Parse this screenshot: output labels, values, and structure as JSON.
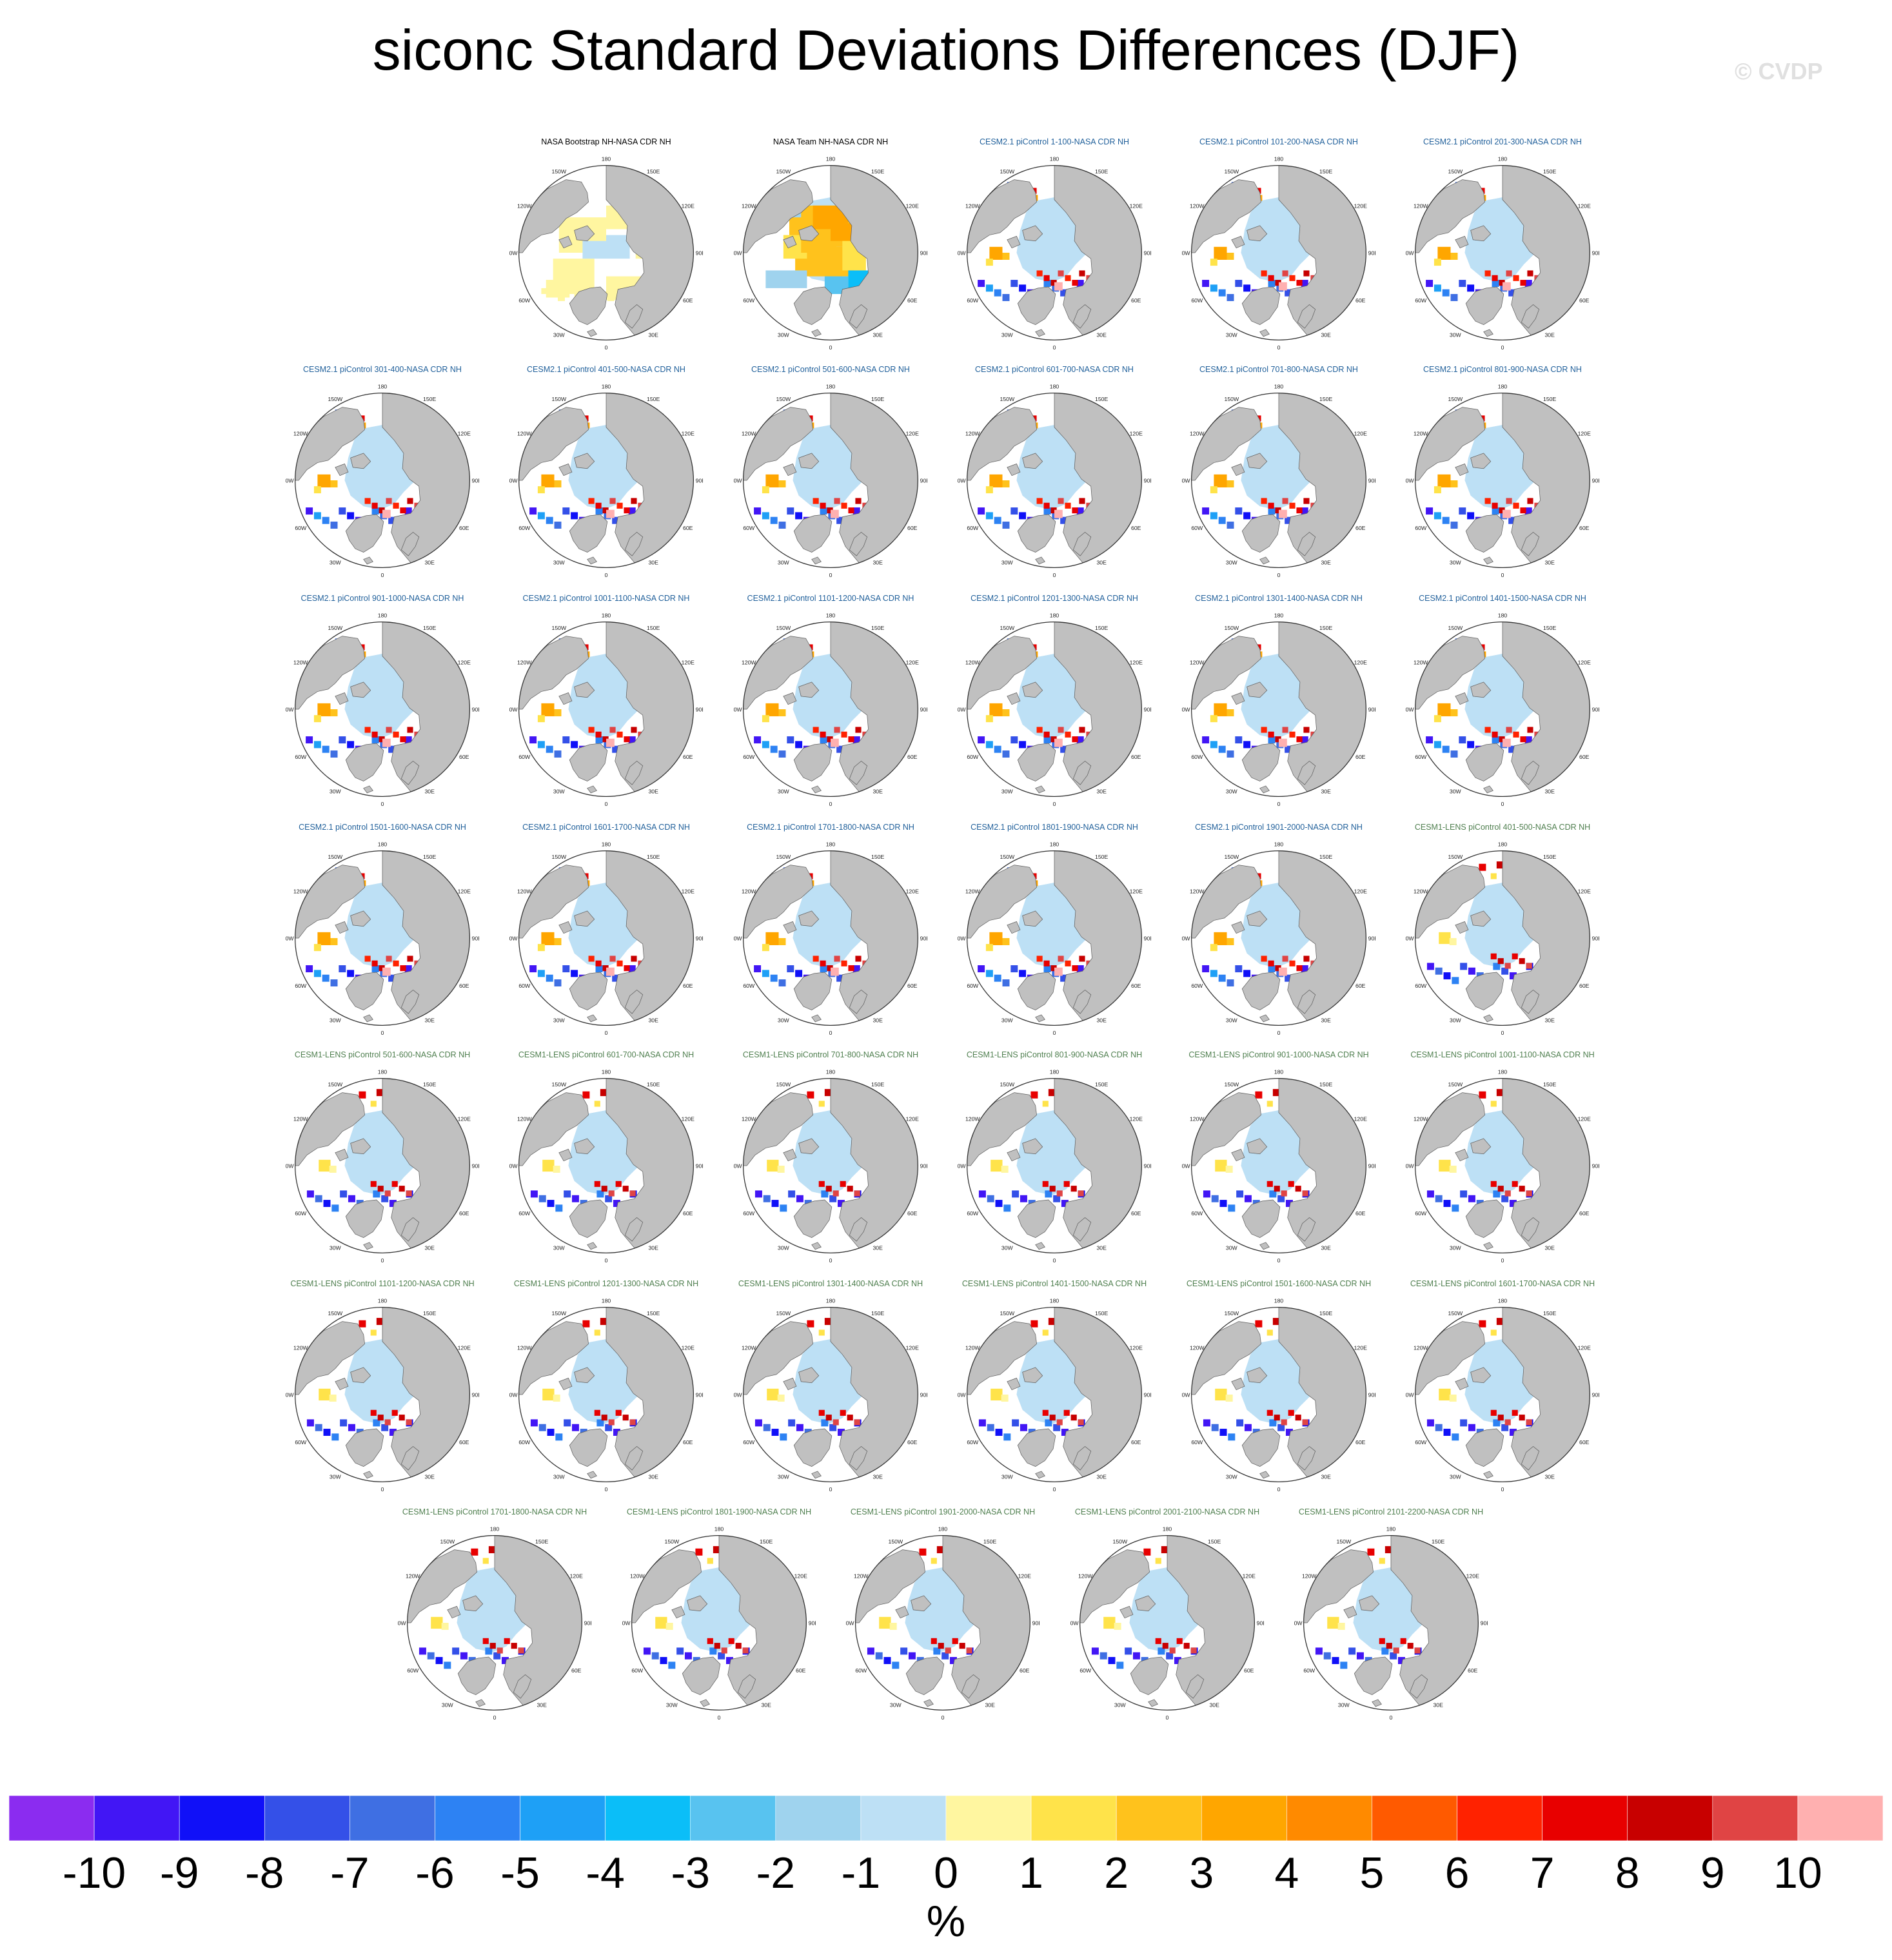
{
  "title": "siconc Standard Deviations Differences (DJF)",
  "watermark": "© CVDP",
  "map_lon_labels": [
    "180",
    "150E",
    "120E",
    "90E",
    "60E",
    "30E",
    "0",
    "30W",
    "60W",
    "90W",
    "120W",
    "150W"
  ],
  "panels": [
    {
      "label": "NASA Bootstrap NH-NASA CDR NH",
      "source": "obs1"
    },
    {
      "label": "NASA Team NH-NASA CDR NH",
      "source": "obs2"
    },
    {
      "label": "CESM2.1 piControl 1-100-NASA CDR NH",
      "source": "cesm2"
    },
    {
      "label": "CESM2.1 piControl 101-200-NASA CDR NH",
      "source": "cesm2"
    },
    {
      "label": "CESM2.1 piControl 201-300-NASA CDR NH",
      "source": "cesm2"
    },
    {
      "label": "CESM2.1 piControl 301-400-NASA CDR NH",
      "source": "cesm2"
    },
    {
      "label": "CESM2.1 piControl 401-500-NASA CDR NH",
      "source": "cesm2"
    },
    {
      "label": "CESM2.1 piControl 501-600-NASA CDR NH",
      "source": "cesm2"
    },
    {
      "label": "CESM2.1 piControl 601-700-NASA CDR NH",
      "source": "cesm2"
    },
    {
      "label": "CESM2.1 piControl 701-800-NASA CDR NH",
      "source": "cesm2"
    },
    {
      "label": "CESM2.1 piControl 801-900-NASA CDR NH",
      "source": "cesm2"
    },
    {
      "label": "CESM2.1 piControl 901-1000-NASA CDR NH",
      "source": "cesm2"
    },
    {
      "label": "CESM2.1 piControl 1001-1100-NASA CDR NH",
      "source": "cesm2"
    },
    {
      "label": "CESM2.1 piControl 1101-1200-NASA CDR NH",
      "source": "cesm2"
    },
    {
      "label": "CESM2.1 piControl 1201-1300-NASA CDR NH",
      "source": "cesm2"
    },
    {
      "label": "CESM2.1 piControl 1301-1400-NASA CDR NH",
      "source": "cesm2"
    },
    {
      "label": "CESM2.1 piControl 1401-1500-NASA CDR NH",
      "source": "cesm2"
    },
    {
      "label": "CESM2.1 piControl 1501-1600-NASA CDR NH",
      "source": "cesm2"
    },
    {
      "label": "CESM2.1 piControl 1601-1700-NASA CDR NH",
      "source": "cesm2"
    },
    {
      "label": "CESM2.1 piControl 1701-1800-NASA CDR NH",
      "source": "cesm2"
    },
    {
      "label": "CESM2.1 piControl 1801-1900-NASA CDR NH",
      "source": "cesm2"
    },
    {
      "label": "CESM2.1 piControl 1901-2000-NASA CDR NH",
      "source": "cesm2"
    },
    {
      "label": "CESM1-LENS piControl 401-500-NASA CDR NH",
      "source": "cesm1"
    },
    {
      "label": "CESM1-LENS piControl 501-600-NASA CDR NH",
      "source": "cesm1"
    },
    {
      "label": "CESM1-LENS piControl 601-700-NASA CDR NH",
      "source": "cesm1"
    },
    {
      "label": "CESM1-LENS piControl 701-800-NASA CDR NH",
      "source": "cesm1"
    },
    {
      "label": "CESM1-LENS piControl 801-900-NASA CDR NH",
      "source": "cesm1"
    },
    {
      "label": "CESM1-LENS piControl 901-1000-NASA CDR NH",
      "source": "cesm1"
    },
    {
      "label": "CESM1-LENS piControl 1001-1100-NASA CDR NH",
      "source": "cesm1"
    },
    {
      "label": "CESM1-LENS piControl 1101-1200-NASA CDR NH",
      "source": "cesm1"
    },
    {
      "label": "CESM1-LENS piControl 1201-1300-NASA CDR NH",
      "source": "cesm1"
    },
    {
      "label": "CESM1-LENS piControl 1301-1400-NASA CDR NH",
      "source": "cesm1"
    },
    {
      "label": "CESM1-LENS piControl 1401-1500-NASA CDR NH",
      "source": "cesm1"
    },
    {
      "label": "CESM1-LENS piControl 1501-1600-NASA CDR NH",
      "source": "cesm1"
    },
    {
      "label": "CESM1-LENS piControl 1601-1700-NASA CDR NH",
      "source": "cesm1"
    },
    {
      "label": "CESM1-LENS piControl 1701-1800-NASA CDR NH",
      "source": "cesm1"
    },
    {
      "label": "CESM1-LENS piControl 1801-1900-NASA CDR NH",
      "source": "cesm1"
    },
    {
      "label": "CESM1-LENS piControl 1901-2000-NASA CDR NH",
      "source": "cesm1"
    },
    {
      "label": "CESM1-LENS piControl 2001-2100-NASA CDR NH",
      "source": "cesm1"
    },
    {
      "label": "CESM1-LENS piControl 2101-2200-NASA CDR NH",
      "source": "cesm1"
    }
  ],
  "label_colors": {
    "obs1": "#000000",
    "obs2": "#000000",
    "cesm2": "#1f5f9a",
    "cesm1": "#4f7f4f"
  },
  "colorbar": {
    "colors": [
      "#8b2cf0",
      "#4216f5",
      "#1010f8",
      "#3450e8",
      "#3f6fe3",
      "#2d82f3",
      "#1ea0f6",
      "#0bbef8",
      "#58c3f0",
      "#9fd3ee",
      "#bde0f5",
      "#fff6a0",
      "#ffe34a",
      "#ffc21c",
      "#ffa600",
      "#ff8a00",
      "#ff5a00",
      "#ff2200",
      "#e80000",
      "#c80000",
      "#e04444",
      "#ffb0b0"
    ],
    "labels": [
      "-10",
      "-9",
      "-8",
      "-7",
      "-6",
      "-5",
      "-4",
      "-3",
      "-2",
      "-1",
      "0",
      "1",
      "2",
      "3",
      "4",
      "5",
      "6",
      "7",
      "8",
      "9",
      "10"
    ],
    "units": "%"
  },
  "map_colors": {
    "land": "#c0c0c0",
    "ice": "#bde0f5",
    "ocean": "#ffffff",
    "coast": "#606060"
  }
}
